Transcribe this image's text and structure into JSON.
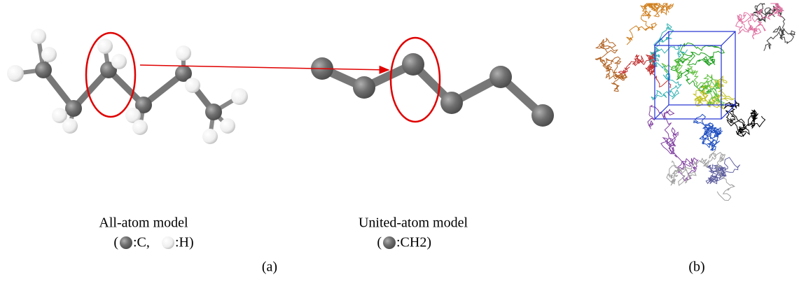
{
  "panel_a": {
    "all_atom": {
      "label": "All-atom model",
      "legend_open": "(",
      "legend_c": ":C, ",
      "legend_h": ":H)"
    },
    "united_atom": {
      "label": "United-atom model",
      "legend_open": "(",
      "legend_ch2": ":CH2)"
    },
    "caption": "(a)"
  },
  "panel_b": {
    "caption": "(b)"
  }
}
